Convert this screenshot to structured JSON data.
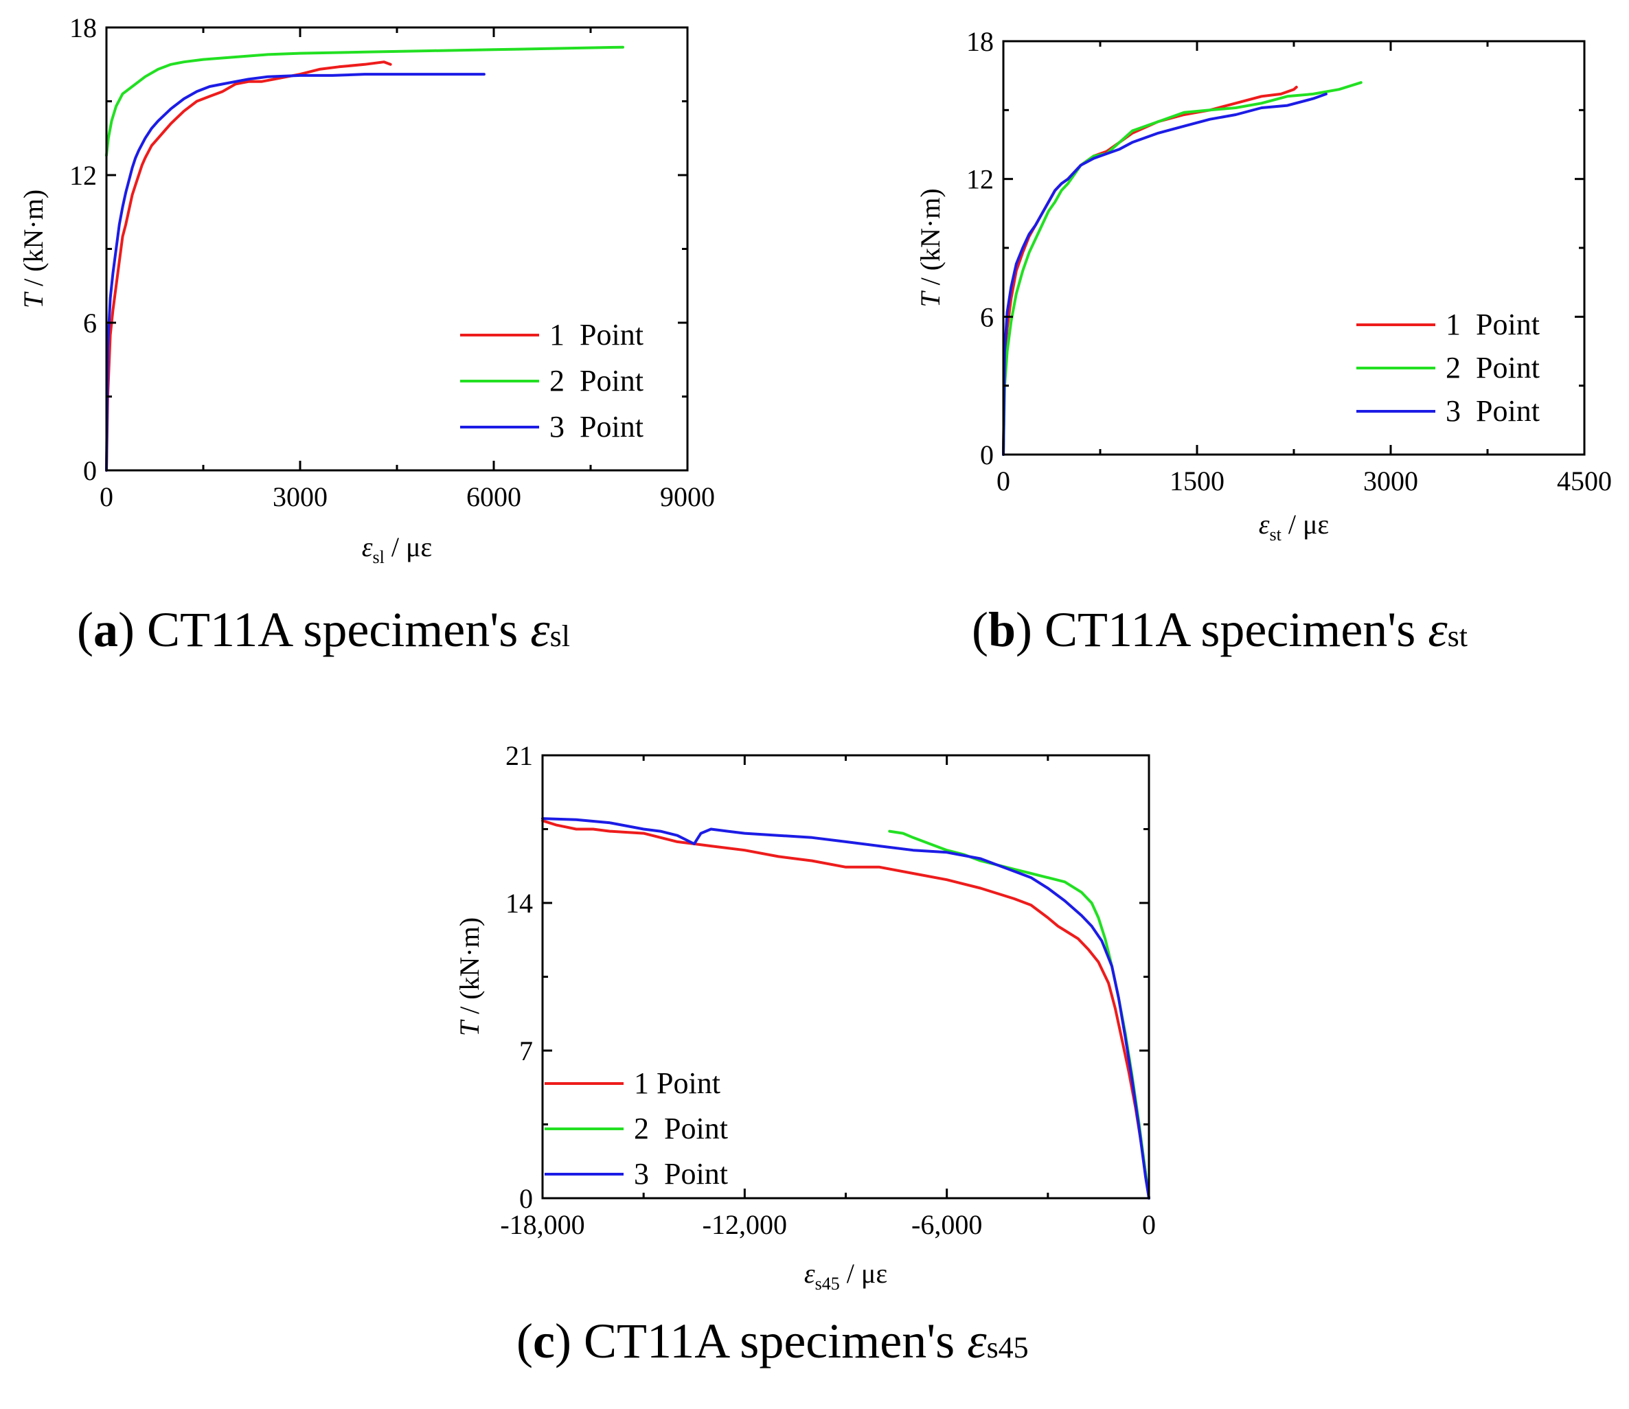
{
  "chart_data": [
    {
      "id": "a",
      "type": "line",
      "ylabel_var": "T",
      "ylabel_unit": " / (kN·m)",
      "xlabel_var": "ε",
      "xlabel_sub": "sl",
      "xlabel_unit": " / με",
      "xlim": [
        0,
        9000
      ],
      "ylim": [
        0,
        18
      ],
      "xticks": [
        0,
        3000,
        6000,
        9000
      ],
      "xtick_labels": [
        "0",
        "3000",
        "6000",
        "9000"
      ],
      "yticks": [
        0,
        6,
        12,
        18
      ],
      "ytick_labels": [
        "0",
        "6",
        "12",
        "18"
      ],
      "legend_position": "bottom-right",
      "series": [
        {
          "name": "1  Point",
          "color": "#ee1c1c",
          "x": [
            0,
            20,
            60,
            100,
            150,
            200,
            250,
            300,
            350,
            400,
            450,
            500,
            550,
            600,
            700,
            800,
            900,
            1000,
            1200,
            1400,
            1600,
            1800,
            2000,
            2200,
            2400,
            2600,
            2800,
            3000,
            3300,
            3600,
            4000,
            4300,
            4400
          ],
          "y": [
            0,
            3,
            5.5,
            6.5,
            7.5,
            8.5,
            9.5,
            10,
            10.6,
            11.2,
            11.6,
            12,
            12.4,
            12.7,
            13.2,
            13.5,
            13.8,
            14.1,
            14.6,
            15.0,
            15.2,
            15.4,
            15.7,
            15.8,
            15.8,
            15.9,
            16.0,
            16.1,
            16.3,
            16.4,
            16.5,
            16.6,
            16.5
          ]
        },
        {
          "name": "2  Point",
          "color": "#22e022",
          "x": [
            0,
            30,
            80,
            150,
            250,
            400,
            600,
            800,
            1000,
            1200,
            1500,
            2000,
            2500,
            3000,
            4000,
            5000,
            6000,
            7000,
            8000
          ],
          "y": [
            12.8,
            13.5,
            14.2,
            14.8,
            15.3,
            15.6,
            16.0,
            16.3,
            16.5,
            16.6,
            16.7,
            16.8,
            16.9,
            16.95,
            17.0,
            17.05,
            17.1,
            17.15,
            17.2
          ]
        },
        {
          "name": "3  Point",
          "color": "#1c1ce6",
          "x": [
            0,
            20,
            60,
            100,
            150,
            200,
            250,
            300,
            350,
            400,
            450,
            500,
            600,
            700,
            800,
            1000,
            1200,
            1400,
            1600,
            1800,
            2000,
            2200,
            2500,
            3000,
            3500,
            4000,
            5000,
            5850
          ],
          "y": [
            0,
            5,
            7,
            8,
            9,
            10,
            10.7,
            11.3,
            11.8,
            12.3,
            12.7,
            13.0,
            13.5,
            13.9,
            14.2,
            14.7,
            15.1,
            15.4,
            15.6,
            15.7,
            15.8,
            15.9,
            16.0,
            16.05,
            16.05,
            16.1,
            16.1,
            16.1
          ]
        }
      ]
    },
    {
      "id": "b",
      "type": "line",
      "ylabel_var": "T",
      "ylabel_unit": " / (kN·m)",
      "xlabel_var": "ε",
      "xlabel_sub": "st",
      "xlabel_unit": " / με",
      "xlim": [
        0,
        4500
      ],
      "ylim": [
        0,
        18
      ],
      "xticks": [
        0,
        1500,
        3000,
        4500
      ],
      "xtick_labels": [
        "0",
        "1500",
        "3000",
        "4500"
      ],
      "yticks": [
        0,
        6,
        12,
        18
      ],
      "ytick_labels": [
        "0",
        "6",
        "12",
        "18"
      ],
      "legend_position": "bottom-right",
      "series": [
        {
          "name": "1  Point",
          "color": "#ee1c1c",
          "x": [
            0,
            10,
            30,
            60,
            100,
            150,
            200,
            250,
            300,
            350,
            400,
            450,
            500,
            600,
            700,
            800,
            900,
            1000,
            1200,
            1400,
            1600,
            1800,
            2000,
            2150,
            2250,
            2270
          ],
          "y": [
            0,
            4,
            5.5,
            6.8,
            8.0,
            8.8,
            9.5,
            10.0,
            10.5,
            11.0,
            11.5,
            11.8,
            12.0,
            12.6,
            13.0,
            13.2,
            13.6,
            14.0,
            14.5,
            14.8,
            15.0,
            15.3,
            15.6,
            15.7,
            15.9,
            16.0
          ]
        },
        {
          "name": "2  Point",
          "color": "#22e022",
          "x": [
            0,
            10,
            30,
            60,
            100,
            150,
            200,
            250,
            300,
            350,
            400,
            450,
            500,
            600,
            700,
            800,
            900,
            1000,
            1200,
            1400,
            1600,
            1800,
            2000,
            2200,
            2400,
            2600,
            2770
          ],
          "y": [
            0,
            3,
            4.5,
            5.8,
            7.0,
            8.0,
            8.8,
            9.4,
            10.0,
            10.6,
            11.0,
            11.5,
            11.8,
            12.6,
            13.0,
            13.1,
            13.6,
            14.1,
            14.5,
            14.9,
            15.0,
            15.1,
            15.3,
            15.6,
            15.7,
            15.9,
            16.2
          ]
        },
        {
          "name": "3  Point",
          "color": "#1c1ce6",
          "x": [
            0,
            10,
            30,
            60,
            100,
            150,
            200,
            250,
            300,
            350,
            400,
            450,
            500,
            600,
            700,
            800,
            900,
            1000,
            1200,
            1400,
            1600,
            1800,
            2000,
            2200,
            2400,
            2500
          ],
          "y": [
            0,
            4.5,
            6.2,
            7.3,
            8.3,
            9.0,
            9.6,
            10.0,
            10.5,
            11.0,
            11.5,
            11.8,
            12.0,
            12.6,
            12.9,
            13.1,
            13.3,
            13.6,
            14.0,
            14.3,
            14.6,
            14.8,
            15.1,
            15.2,
            15.5,
            15.7
          ]
        }
      ]
    },
    {
      "id": "c",
      "type": "line",
      "ylabel_var": "T",
      "ylabel_unit": " / (kN·m)",
      "xlabel_var": "ε",
      "xlabel_sub": "s45",
      "xlabel_unit": " / με",
      "xlim": [
        -18000,
        0
      ],
      "ylim": [
        0,
        21
      ],
      "xticks": [
        -18000,
        -12000,
        -6000,
        0
      ],
      "xtick_labels": [
        "-18,000",
        "-12,000",
        "-6,000",
        "0"
      ],
      "yticks": [
        0,
        7,
        14,
        21
      ],
      "ytick_labels": [
        "0",
        "7",
        "14",
        "21"
      ],
      "legend_position": "bottom-left",
      "series": [
        {
          "name": "1 Point",
          "color": "#ee1c1c",
          "x": [
            -18000,
            -17600,
            -17300,
            -17000,
            -16500,
            -16000,
            -15000,
            -14000,
            -13000,
            -12000,
            -11000,
            -10000,
            -9000,
            -8000,
            -7000,
            -6000,
            -5000,
            -4000,
            -3500,
            -3000,
            -2700,
            -2400,
            -2100,
            -1800,
            -1500,
            -1200,
            -1000,
            -800,
            -600,
            -400,
            -200,
            0
          ],
          "y": [
            17.9,
            17.7,
            17.6,
            17.5,
            17.5,
            17.4,
            17.3,
            16.9,
            16.7,
            16.5,
            16.2,
            16.0,
            15.7,
            15.7,
            15.4,
            15.1,
            14.7,
            14.2,
            13.9,
            13.3,
            12.9,
            12.6,
            12.3,
            11.8,
            11.2,
            10.2,
            9.0,
            7.5,
            6.0,
            4.3,
            2.3,
            0
          ]
        },
        {
          "name": "2  Point",
          "color": "#22e022",
          "x": [
            -7700,
            -7300,
            -7000,
            -6500,
            -6000,
            -5500,
            -5000,
            -4500,
            -4000,
            -3500,
            -3000,
            -2500,
            -2000,
            -1700,
            -1500,
            -1300,
            -1100,
            -900,
            -700,
            -500,
            -300,
            -100,
            0
          ],
          "y": [
            17.4,
            17.3,
            17.1,
            16.8,
            16.5,
            16.3,
            16.0,
            15.8,
            15.6,
            15.4,
            15.2,
            15.0,
            14.5,
            14.0,
            13.3,
            12.3,
            11.0,
            9.5,
            7.8,
            5.8,
            3.6,
            1.2,
            0
          ]
        },
        {
          "name": "3  Point",
          "color": "#1c1ce6",
          "x": [
            -18000,
            -17000,
            -16000,
            -15000,
            -14500,
            -14000,
            -13500,
            -13300,
            -13000,
            -12500,
            -12000,
            -11000,
            -10000,
            -9000,
            -8000,
            -7000,
            -6000,
            -5000,
            -4500,
            -4000,
            -3500,
            -3000,
            -2500,
            -2000,
            -1700,
            -1400,
            -1100,
            -900,
            -700,
            -500,
            -300,
            -100,
            0
          ],
          "y": [
            18.0,
            17.95,
            17.8,
            17.5,
            17.4,
            17.2,
            16.8,
            17.3,
            17.5,
            17.4,
            17.3,
            17.2,
            17.1,
            16.9,
            16.7,
            16.5,
            16.4,
            16.1,
            15.8,
            15.5,
            15.2,
            14.7,
            14.1,
            13.4,
            12.9,
            12.2,
            11.0,
            9.5,
            7.6,
            5.6,
            3.4,
            1.0,
            0
          ]
        }
      ]
    }
  ],
  "captions": {
    "a": {
      "tag": "a",
      "text": " CT11A specimen's ",
      "var": "ε",
      "sub": "sl"
    },
    "b": {
      "tag": "b",
      "text": " CT11A specimen's ",
      "var": "ε",
      "sub": "st"
    },
    "c": {
      "tag": "c",
      "text": " CT11A specimen's ",
      "var": "ε",
      "sub": "s45"
    }
  }
}
